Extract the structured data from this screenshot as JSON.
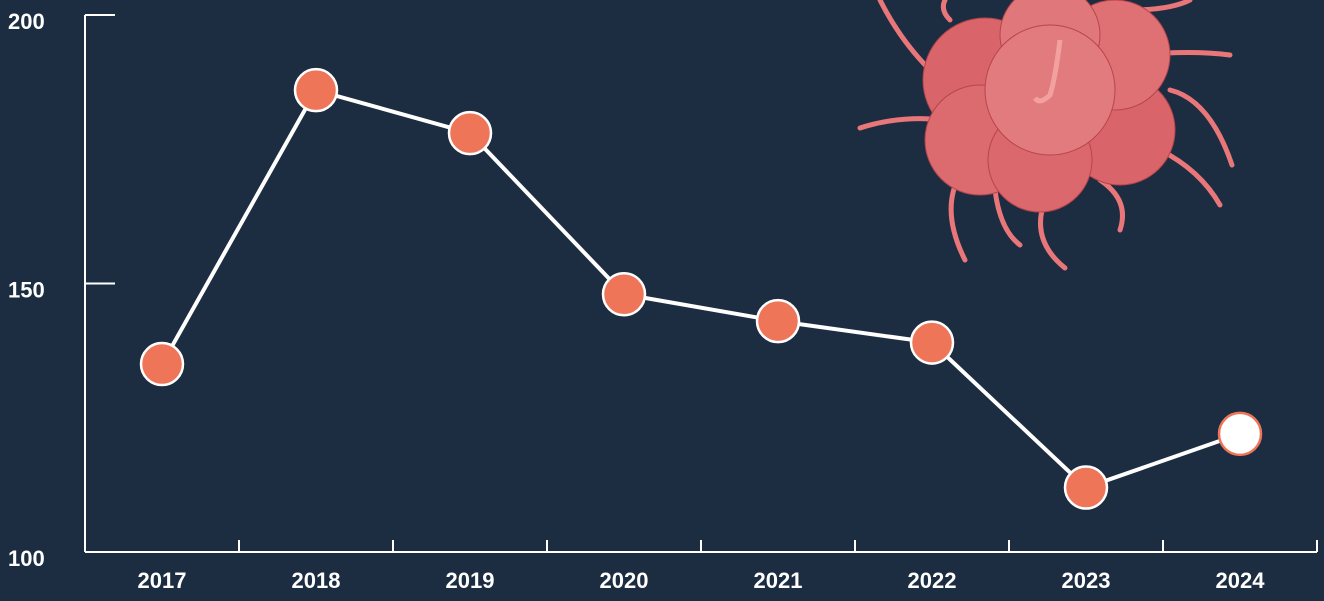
{
  "chart_data": {
    "type": "line",
    "categories": [
      "2017",
      "2018",
      "2019",
      "2020",
      "2021",
      "2022",
      "2023",
      "2024"
    ],
    "values": [
      135,
      186,
      178,
      148,
      143,
      139,
      112,
      122
    ],
    "color": "#ffffff",
    "marker_colors": [
      "#ef7558",
      "#ef7558",
      "#ef7558",
      "#ef7558",
      "#ef7558",
      "#ef7558",
      "#ef7558",
      "#ffffff"
    ],
    "ylim": [
      100,
      200
    ],
    "yticks": [
      100,
      150,
      200
    ],
    "grid": false
  }
}
